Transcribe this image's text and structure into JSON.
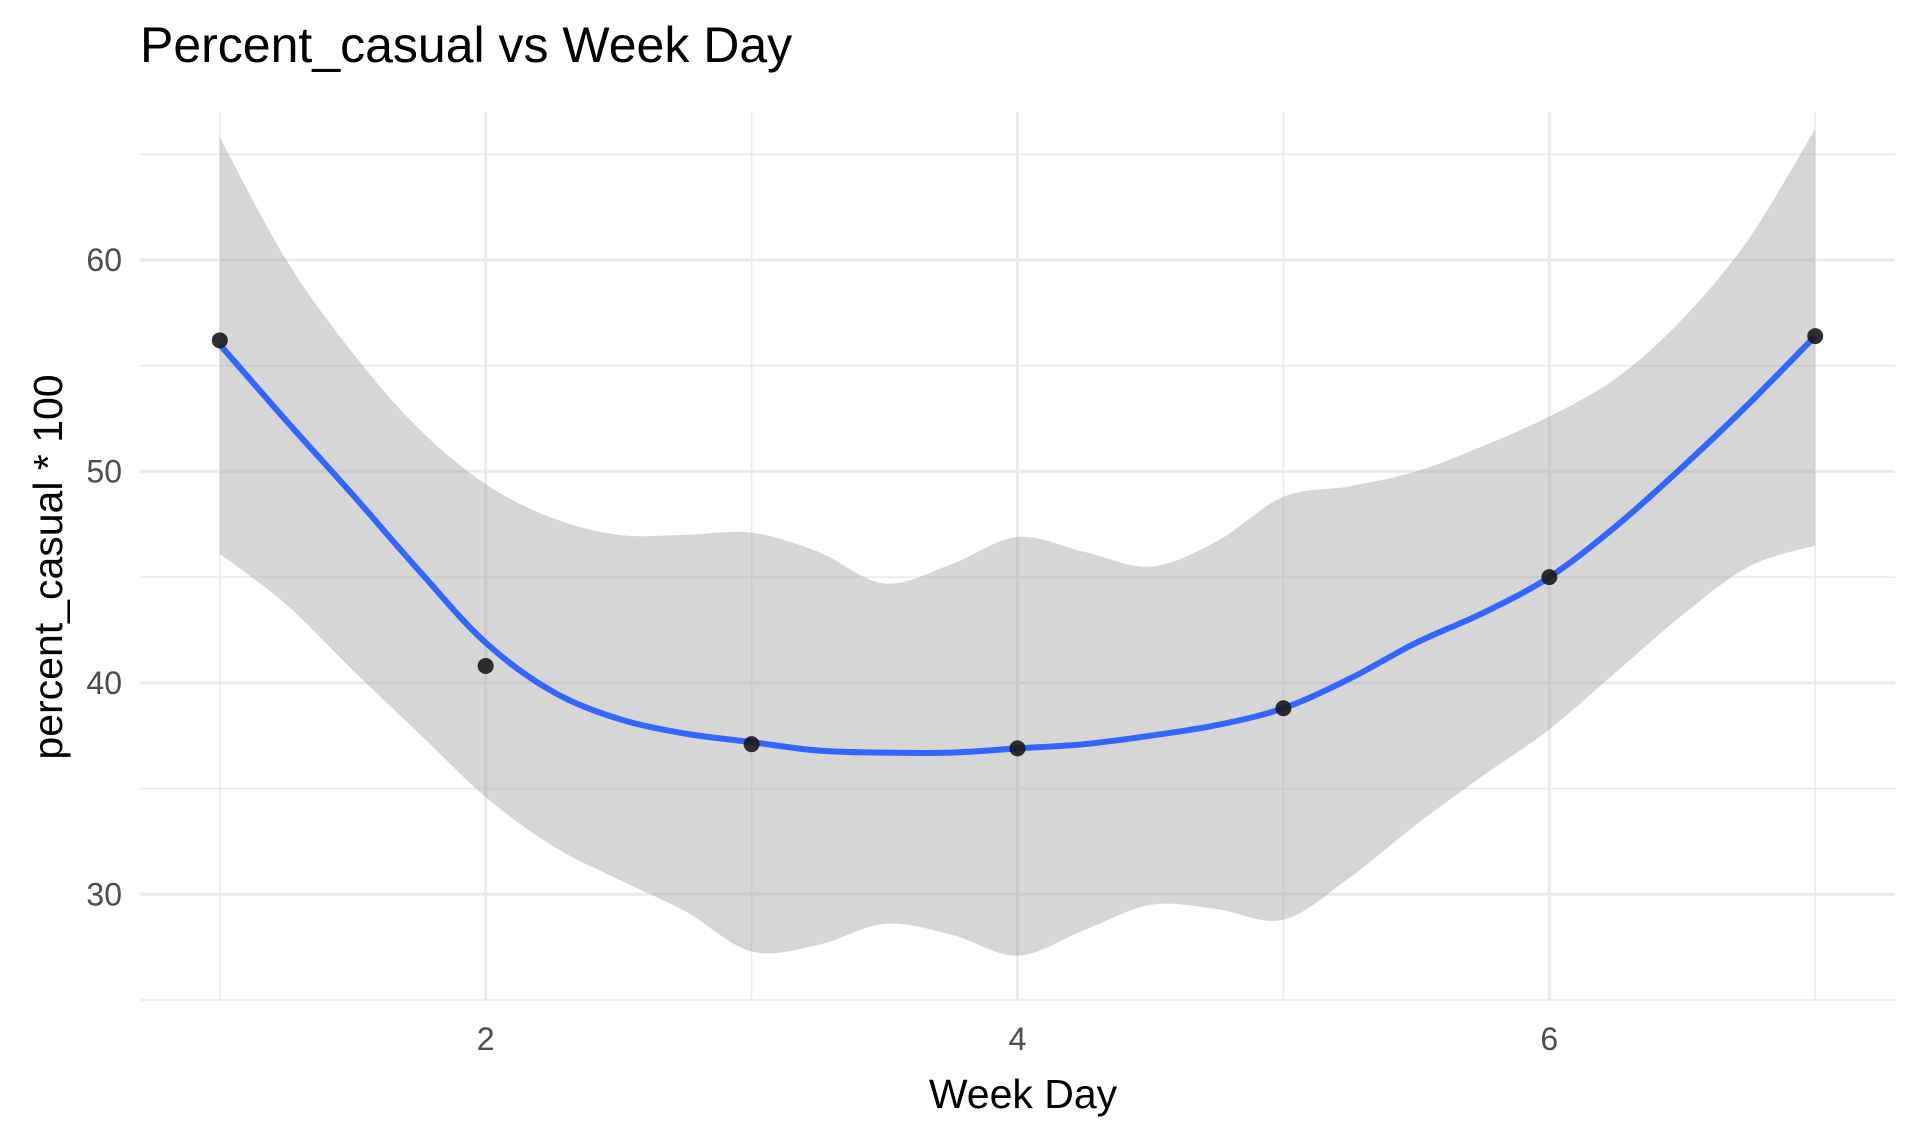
{
  "chart_data": {
    "type": "scatter",
    "title": "Percent_casual vs Week Day",
    "xlabel": "Week Day",
    "ylabel": "percent_casual * 100",
    "xlim": [
      0.7,
      7.3
    ],
    "ylim": [
      25,
      67
    ],
    "xticks": [
      2,
      4,
      6
    ],
    "yticks": [
      30,
      40,
      50,
      60
    ],
    "grid": true,
    "points": {
      "x": [
        1,
        2,
        3,
        4,
        5,
        6,
        7
      ],
      "y": [
        56.2,
        40.8,
        37.1,
        36.9,
        38.8,
        45.0,
        56.4
      ]
    },
    "smooth": {
      "color": "#3366ff",
      "x": [
        1.0,
        1.25,
        1.5,
        1.75,
        2.0,
        2.25,
        2.5,
        2.75,
        3.0,
        3.25,
        3.5,
        3.75,
        4.0,
        4.25,
        4.5,
        4.75,
        5.0,
        5.25,
        5.5,
        5.75,
        6.0,
        6.25,
        6.5,
        6.75,
        7.0
      ],
      "y": [
        56.0,
        52.4,
        48.9,
        45.3,
        41.9,
        39.6,
        38.3,
        37.6,
        37.2,
        36.8,
        36.7,
        36.7,
        36.9,
        37.1,
        37.5,
        38.0,
        38.8,
        40.2,
        41.9,
        43.3,
        45.0,
        47.4,
        50.2,
        53.2,
        56.4
      ]
    },
    "band": {
      "color": "#999999",
      "x": [
        1.0,
        1.25,
        1.5,
        1.75,
        2.0,
        2.25,
        2.5,
        2.75,
        3.0,
        3.25,
        3.5,
        3.75,
        4.0,
        4.25,
        4.5,
        4.75,
        5.0,
        5.25,
        5.5,
        5.75,
        6.0,
        6.25,
        6.5,
        6.75,
        7.0
      ],
      "upper": [
        65.8,
        60.0,
        55.6,
        52.0,
        49.4,
        47.8,
        47.0,
        47.0,
        47.1,
        46.2,
        44.7,
        45.6,
        46.9,
        46.2,
        45.5,
        46.7,
        48.8,
        49.3,
        50.0,
        51.2,
        52.6,
        54.4,
        57.2,
        61.0,
        66.2
      ],
      "lower": [
        46.1,
        43.7,
        40.6,
        37.6,
        34.6,
        32.3,
        30.7,
        29.2,
        27.3,
        27.6,
        28.6,
        28.1,
        27.1,
        28.3,
        29.5,
        29.3,
        28.8,
        30.8,
        33.3,
        35.6,
        37.8,
        40.5,
        43.2,
        45.5,
        46.5
      ]
    }
  }
}
